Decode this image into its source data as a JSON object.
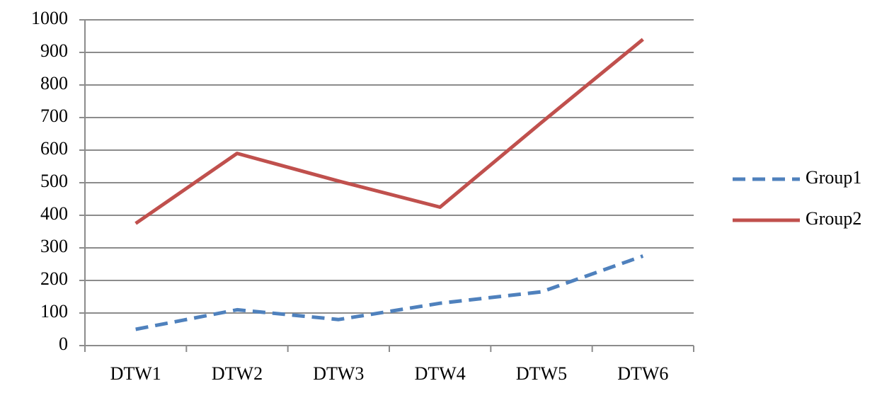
{
  "chart_data": {
    "type": "line",
    "categories": [
      "DTW1",
      "DTW2",
      "DTW3",
      "DTW4",
      "DTW5",
      "DTW6"
    ],
    "series": [
      {
        "name": "Group1",
        "color": "#4f81bd",
        "dash": true,
        "values": [
          50,
          110,
          80,
          130,
          165,
          275
        ]
      },
      {
        "name": "Group2",
        "color": "#c0504d",
        "dash": false,
        "values": [
          375,
          590,
          505,
          425,
          685,
          940
        ]
      }
    ],
    "ylim": [
      0,
      1000
    ],
    "yticks": [
      0,
      100,
      200,
      300,
      400,
      500,
      600,
      700,
      800,
      900,
      1000
    ],
    "grid": true,
    "legend": "right"
  }
}
